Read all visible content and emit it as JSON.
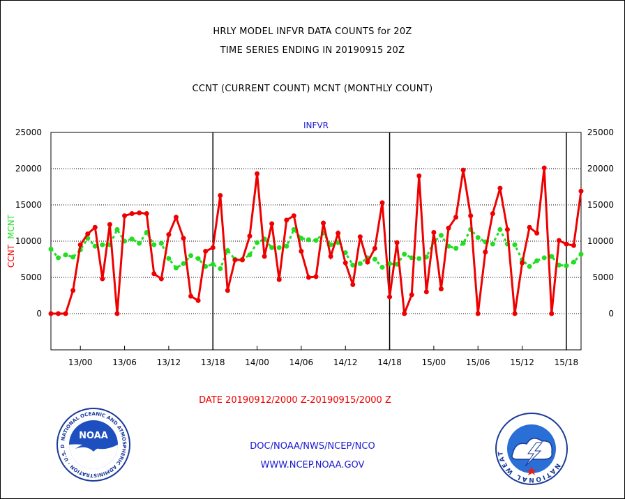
{
  "header": {
    "line1": "HRLY MODEL INFVR DATA COUNTS for 20Z",
    "line2": "TIME SERIES ENDING IN 20190915 20Z",
    "line3": "CCNT (CURRENT COUNT) MCNT (MONTHLY COUNT)"
  },
  "footer": {
    "date_range": "DATE 20190912/2000 Z-20190915/2000 Z",
    "org": "DOC/NOAA/NWS/NCEP/NCO",
    "url": "WWW.NCEP.NOAA.GOV"
  },
  "logos": {
    "noaa": {
      "center_text": "NOAA",
      "ring_text": "NATIONAL OCEANIC AND ATMOSPHERIC ADMINISTRATION · U.S. DEPARTMENT OF COMMERCE"
    },
    "nws": {
      "ring_text": "NATIONAL WEATHER SERVICE"
    }
  },
  "colors": {
    "ccnt": "#ee0000",
    "mcnt": "#22dd22",
    "axis_title": "#1a1ad0",
    "ylabel_ccnt": "#ee0000",
    "ylabel_mcnt": "#22dd22"
  },
  "chart_data": {
    "type": "line",
    "title": "INFVR",
    "ylabel_parts": [
      "CCNT",
      "MCNT"
    ],
    "ylim": [
      -5000,
      25000
    ],
    "yticks": [
      0,
      5000,
      10000,
      15000,
      20000,
      25000
    ],
    "ytick_labels": [
      "0",
      "5000",
      "10000",
      "15000",
      "20000",
      "25000"
    ],
    "x_unit": "hours since 2019-09-12 20Z",
    "xlim": [
      0,
      72
    ],
    "xticks": [
      4,
      10,
      16,
      22,
      28,
      34,
      40,
      46,
      52,
      58,
      64,
      70
    ],
    "xtick_labels": [
      "13/00",
      "13/06",
      "13/12",
      "13/18",
      "14/00",
      "14/06",
      "14/12",
      "14/18",
      "15/00",
      "15/06",
      "15/12",
      "15/18"
    ],
    "day_dividers": [
      22,
      46,
      70
    ],
    "grid": true,
    "series": [
      {
        "name": "CCNT",
        "values": [
          0,
          0,
          0,
          3200,
          9500,
          11000,
          11900,
          4800,
          12300,
          0,
          13500,
          13800,
          13900,
          13800,
          5500,
          4800,
          10900,
          13300,
          10400,
          2400,
          1800,
          8600,
          9100,
          16300,
          3200,
          7400,
          7400,
          10700,
          19300,
          7900,
          12400,
          4700,
          12900,
          13500,
          8600,
          5000,
          5100,
          12500,
          7900,
          11100,
          7000,
          4000,
          10600,
          7100,
          9000,
          15300,
          2300,
          9800,
          0,
          2600,
          19000,
          3000,
          11200,
          3400,
          11800,
          13300,
          19800,
          13500,
          0,
          8500,
          13800,
          17300,
          11600,
          0,
          7000,
          11900,
          11100,
          20100,
          0,
          10100,
          9600,
          9400,
          16900
        ]
      },
      {
        "name": "MCNT",
        "values": [
          8900,
          7700,
          8100,
          7800,
          8800,
          10400,
          9300,
          9500,
          9500,
          11600,
          10000,
          10300,
          9700,
          11200,
          9500,
          9700,
          7600,
          6300,
          6900,
          8000,
          7600,
          6500,
          6800,
          6200,
          8700,
          7500,
          7500,
          8100,
          9800,
          10300,
          9100,
          9100,
          9300,
          11600,
          10400,
          10200,
          10100,
          11100,
          9500,
          9800,
          8400,
          6700,
          6900,
          7700,
          7500,
          6400,
          6900,
          6800,
          8200,
          7700,
          7600,
          7800,
          9900,
          10800,
          9300,
          9000,
          9700,
          11600,
          10500,
          9900,
          9600,
          11600,
          9600,
          9500,
          7400,
          6500,
          7300,
          7700,
          7900,
          6700,
          6600,
          7100,
          8200
        ]
      }
    ]
  }
}
